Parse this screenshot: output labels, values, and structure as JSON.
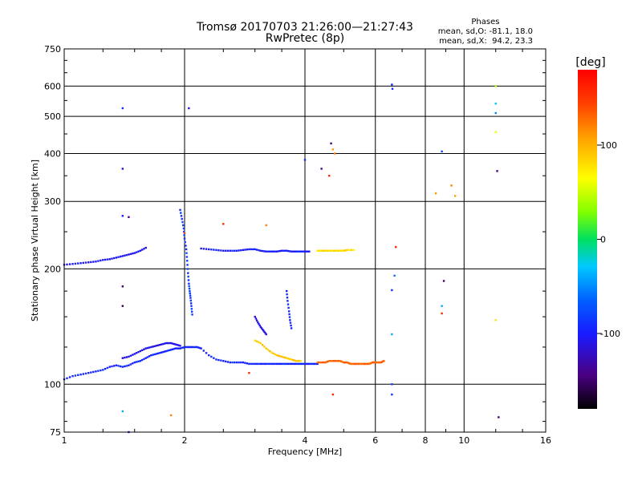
{
  "header": {
    "title_line1": "Tromsø 20170703 21:26:00—21:27:43",
    "title_line2": "RwPretec (8p)",
    "stats_title": "Phases",
    "stats_o": "mean, sd,O: -81.1, 18.0",
    "stats_x": "mean, sd,X:  94.2, 23.3"
  },
  "colorbar": {
    "title": "[deg]",
    "ticks": [
      "100",
      "0",
      "-100"
    ],
    "tick_values": [
      100,
      0,
      -100
    ],
    "range": [
      -180,
      180
    ],
    "colormap": "rainbow (black-purple-blue-cyan-green-yellow-red)"
  },
  "chart_data": {
    "type": "scatter",
    "title": "Tromsø 20170703 21:26:00—21:27:43",
    "subtitle": "RwPretec (8p)",
    "xlabel": "Frequency [MHz]",
    "ylabel": "Stationary phase Virtual Height [km]",
    "xscale": "log",
    "yscale": "log",
    "xlim": [
      1,
      16
    ],
    "ylim": [
      75,
      750
    ],
    "x_ticks": [
      1,
      2,
      4,
      6,
      8,
      10,
      16
    ],
    "x_tick_labels": [
      "1",
      "2",
      "4",
      "6",
      "8",
      "10",
      "16"
    ],
    "y_ticks": [
      75,
      100,
      200,
      300,
      400,
      500,
      600,
      750
    ],
    "y_tick_labels": [
      "75",
      "100",
      "200",
      "300",
      "400",
      "500",
      "600",
      "750"
    ],
    "grid": true,
    "color_by": "phase [deg]",
    "traces": [
      {
        "name": "",
        "phase": -95,
        "points": [
          [
            1.0,
            103
          ],
          [
            1.05,
            105
          ],
          [
            1.1,
            106
          ],
          [
            1.15,
            107
          ],
          [
            1.2,
            108
          ],
          [
            1.25,
            109
          ],
          [
            1.3,
            111
          ],
          [
            1.35,
            112
          ],
          [
            1.4,
            111
          ],
          [
            1.45,
            112
          ],
          [
            1.5,
            114
          ],
          [
            1.55,
            115
          ],
          [
            1.6,
            117
          ],
          [
            1.65,
            119
          ],
          [
            1.7,
            120
          ],
          [
            1.75,
            121
          ],
          [
            1.8,
            122
          ],
          [
            1.85,
            123
          ],
          [
            1.9,
            124
          ],
          [
            1.95,
            124
          ],
          [
            2.0,
            125
          ],
          [
            2.05,
            125
          ],
          [
            2.1,
            125
          ],
          [
            2.15,
            125
          ],
          [
            2.2,
            124
          ],
          [
            2.3,
            119
          ],
          [
            2.4,
            116
          ],
          [
            2.5,
            115
          ],
          [
            2.6,
            114
          ],
          [
            2.7,
            114
          ],
          [
            2.8,
            114
          ],
          [
            2.9,
            113
          ],
          [
            3.0,
            113
          ],
          [
            3.1,
            113
          ],
          [
            3.2,
            113
          ],
          [
            3.3,
            113
          ],
          [
            3.4,
            113
          ],
          [
            3.5,
            113
          ],
          [
            3.6,
            113
          ],
          [
            3.7,
            113
          ],
          [
            3.8,
            113
          ],
          [
            3.9,
            113
          ],
          [
            4.0,
            113
          ],
          [
            4.1,
            113
          ],
          [
            4.2,
            113
          ],
          [
            4.3,
            113
          ]
        ]
      },
      {
        "name": "",
        "phase": -110,
        "points": [
          [
            1.4,
            117
          ],
          [
            1.45,
            118
          ],
          [
            1.5,
            120
          ],
          [
            1.55,
            122
          ],
          [
            1.6,
            124
          ],
          [
            1.65,
            125
          ],
          [
            1.7,
            126
          ],
          [
            1.75,
            127
          ],
          [
            1.8,
            128
          ],
          [
            1.85,
            128
          ],
          [
            1.9,
            127
          ],
          [
            1.95,
            126
          ]
        ]
      },
      {
        "name": "",
        "phase": 130,
        "points": [
          [
            4.3,
            114
          ],
          [
            4.4,
            114
          ],
          [
            4.5,
            114
          ],
          [
            4.6,
            115
          ],
          [
            4.7,
            115
          ],
          [
            4.8,
            115
          ],
          [
            4.9,
            115
          ],
          [
            5.0,
            114
          ],
          [
            5.1,
            114
          ],
          [
            5.2,
            113
          ],
          [
            5.3,
            113
          ],
          [
            5.4,
            113
          ],
          [
            5.5,
            113
          ],
          [
            5.6,
            113
          ],
          [
            5.7,
            113
          ],
          [
            5.8,
            113
          ],
          [
            5.9,
            114
          ],
          [
            6.0,
            114
          ],
          [
            6.1,
            114
          ],
          [
            6.2,
            114
          ],
          [
            6.3,
            115
          ]
        ]
      },
      {
        "name": "",
        "phase": 90,
        "points": [
          [
            3.0,
            130
          ],
          [
            3.1,
            128
          ],
          [
            3.2,
            124
          ],
          [
            3.3,
            121
          ],
          [
            3.4,
            119
          ],
          [
            3.5,
            118
          ],
          [
            3.6,
            117
          ],
          [
            3.7,
            116
          ],
          [
            3.8,
            115
          ],
          [
            3.9,
            115
          ]
        ]
      },
      {
        "name": "",
        "phase": -105,
        "points": [
          [
            1.0,
            205
          ],
          [
            1.05,
            206
          ],
          [
            1.1,
            207
          ],
          [
            1.15,
            208
          ],
          [
            1.2,
            209
          ],
          [
            1.25,
            211
          ],
          [
            1.3,
            212
          ],
          [
            1.35,
            214
          ],
          [
            1.4,
            216
          ],
          [
            1.45,
            218
          ],
          [
            1.5,
            220
          ],
          [
            1.55,
            223
          ],
          [
            1.6,
            227
          ]
        ]
      },
      {
        "name": "",
        "phase": -100,
        "points": [
          [
            2.2,
            226
          ],
          [
            2.3,
            225
          ],
          [
            2.4,
            224
          ],
          [
            2.5,
            223
          ],
          [
            2.6,
            223
          ],
          [
            2.7,
            223
          ],
          [
            2.8,
            224
          ],
          [
            2.9,
            225
          ],
          [
            3.0,
            225
          ],
          [
            3.1,
            223
          ],
          [
            3.2,
            222
          ],
          [
            3.3,
            222
          ],
          [
            3.4,
            222
          ],
          [
            3.5,
            223
          ],
          [
            3.6,
            223
          ],
          [
            3.7,
            222
          ],
          [
            3.8,
            222
          ],
          [
            3.9,
            222
          ],
          [
            4.0,
            222
          ],
          [
            4.1,
            222
          ]
        ]
      },
      {
        "name": "",
        "phase": 80,
        "points": [
          [
            4.3,
            223
          ],
          [
            4.4,
            223
          ],
          [
            4.5,
            223
          ],
          [
            4.6,
            223
          ],
          [
            4.7,
            223
          ],
          [
            4.8,
            223
          ],
          [
            4.9,
            223
          ],
          [
            5.0,
            223
          ],
          [
            5.1,
            224
          ],
          [
            5.3,
            224
          ]
        ]
      },
      {
        "name": "",
        "phase": -85,
        "points": [
          [
            1.95,
            285
          ],
          [
            1.97,
            270
          ],
          [
            1.99,
            255
          ],
          [
            2.0,
            240
          ],
          [
            2.02,
            225
          ],
          [
            2.03,
            210
          ],
          [
            2.04,
            195
          ],
          [
            2.05,
            183
          ],
          [
            2.06,
            175
          ],
          [
            2.07,
            168
          ],
          [
            2.08,
            160
          ],
          [
            2.09,
            152
          ]
        ]
      },
      {
        "name": "",
        "phase": -110,
        "points": [
          [
            3.0,
            150
          ],
          [
            3.05,
            145
          ],
          [
            3.1,
            141
          ],
          [
            3.15,
            138
          ],
          [
            3.2,
            135
          ]
        ]
      },
      {
        "name": "",
        "phase": -95,
        "points": [
          [
            3.6,
            175
          ],
          [
            3.62,
            165
          ],
          [
            3.65,
            155
          ],
          [
            3.67,
            147
          ],
          [
            3.7,
            140
          ]
        ]
      }
    ],
    "scattered_points": [
      {
        "x": 1.4,
        "y": 525,
        "phase": -90
      },
      {
        "x": 2.05,
        "y": 525,
        "phase": -110
      },
      {
        "x": 1.4,
        "y": 365,
        "phase": -120
      },
      {
        "x": 1.4,
        "y": 275,
        "phase": -100
      },
      {
        "x": 1.45,
        "y": 273,
        "phase": -140
      },
      {
        "x": 1.4,
        "y": 180,
        "phase": -150
      },
      {
        "x": 1.4,
        "y": 160,
        "phase": -160
      },
      {
        "x": 1.4,
        "y": 85,
        "phase": -40
      },
      {
        "x": 1.45,
        "y": 75,
        "phase": -100
      },
      {
        "x": 1.85,
        "y": 83,
        "phase": 120
      },
      {
        "x": 2.0,
        "y": 248,
        "phase": 140
      },
      {
        "x": 2.5,
        "y": 262,
        "phase": 160
      },
      {
        "x": 2.9,
        "y": 107,
        "phase": 160
      },
      {
        "x": 3.2,
        "y": 260,
        "phase": 120
      },
      {
        "x": 4.0,
        "y": 385,
        "phase": -90
      },
      {
        "x": 4.4,
        "y": 365,
        "phase": -140
      },
      {
        "x": 4.6,
        "y": 350,
        "phase": 160
      },
      {
        "x": 4.65,
        "y": 425,
        "phase": -150
      },
      {
        "x": 4.7,
        "y": 410,
        "phase": 110
      },
      {
        "x": 4.75,
        "y": 400,
        "phase": 120
      },
      {
        "x": 4.7,
        "y": 94,
        "phase": 160
      },
      {
        "x": 6.6,
        "y": 605,
        "phase": -100
      },
      {
        "x": 6.62,
        "y": 590,
        "phase": -90
      },
      {
        "x": 6.75,
        "y": 228,
        "phase": 160
      },
      {
        "x": 6.7,
        "y": 192,
        "phase": -60
      },
      {
        "x": 6.6,
        "y": 176,
        "phase": -90
      },
      {
        "x": 6.6,
        "y": 100,
        "phase": -80
      },
      {
        "x": 6.6,
        "y": 94,
        "phase": -90
      },
      {
        "x": 6.6,
        "y": 135,
        "phase": -40
      },
      {
        "x": 8.8,
        "y": 405,
        "phase": -80
      },
      {
        "x": 8.5,
        "y": 315,
        "phase": 110
      },
      {
        "x": 9.3,
        "y": 330,
        "phase": 120
      },
      {
        "x": 9.5,
        "y": 310,
        "phase": 110
      },
      {
        "x": 8.9,
        "y": 186,
        "phase": -150
      },
      {
        "x": 8.8,
        "y": 160,
        "phase": -40
      },
      {
        "x": 8.8,
        "y": 153,
        "phase": 160
      },
      {
        "x": 12.0,
        "y": 600,
        "phase": 40
      },
      {
        "x": 12.0,
        "y": 540,
        "phase": -30
      },
      {
        "x": 12.0,
        "y": 510,
        "phase": -50
      },
      {
        "x": 12.0,
        "y": 455,
        "phase": 60
      },
      {
        "x": 12.1,
        "y": 360,
        "phase": -140
      },
      {
        "x": 12.0,
        "y": 147,
        "phase": 80
      },
      {
        "x": 12.2,
        "y": 82,
        "phase": -150
      }
    ]
  }
}
